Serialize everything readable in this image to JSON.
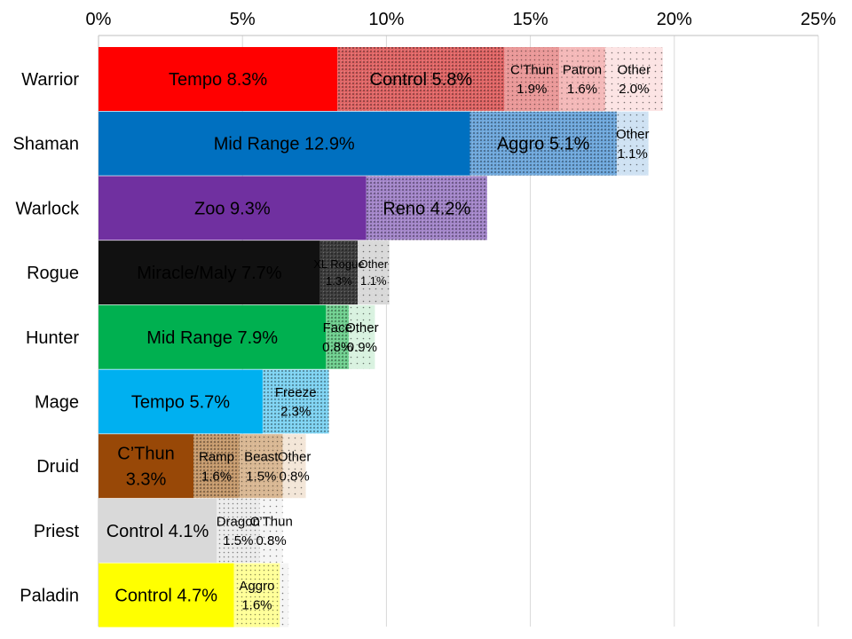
{
  "chart_data": {
    "type": "bar",
    "orientation": "horizontal",
    "stacked": true,
    "title": "",
    "xlabel": "",
    "ylabel": "",
    "xlim": [
      0,
      25
    ],
    "x_ticks": [
      "0%",
      "5%",
      "10%",
      "15%",
      "20%",
      "25%"
    ],
    "x_tick_values": [
      0,
      5,
      10,
      15,
      20,
      25
    ],
    "grid": "vertical",
    "axis_position": "top",
    "unit": "%",
    "categories": [
      {
        "name": "Warrior",
        "segments": [
          {
            "label": "Tempo 8.3%",
            "lines": [
              "Tempo 8.3%"
            ],
            "value": 8.3,
            "color": "#ff0000",
            "pattern": "solid",
            "size": "large"
          },
          {
            "label": "Control 5.8%",
            "lines": [
              "Control 5.8%"
            ],
            "value": 5.8,
            "color": "#e06666",
            "pattern": "dots-dense",
            "size": "large"
          },
          {
            "label": "C'Thun 1.9%",
            "lines": [
              "C’Thun",
              "1.9%"
            ],
            "value": 1.9,
            "color": "#ea9999",
            "pattern": "dots-medium",
            "size": "small"
          },
          {
            "label": "Patron 1.6%",
            "lines": [
              "Patron",
              "1.6%"
            ],
            "value": 1.6,
            "color": "#f4b9b9",
            "pattern": "dots-light",
            "size": "small"
          },
          {
            "label": "Other 2.0%",
            "lines": [
              "Other",
              "2.0%"
            ],
            "value": 2.0,
            "color": "#fce4e4",
            "pattern": "dots-sparse",
            "size": "small"
          }
        ]
      },
      {
        "name": "Shaman",
        "segments": [
          {
            "label": "Mid Range 12.9%",
            "lines": [
              "Mid Range 12.9%"
            ],
            "value": 12.9,
            "color": "#0070c0",
            "pattern": "solid",
            "size": "large"
          },
          {
            "label": "Aggro 5.1%",
            "lines": [
              "Aggro 5.1%"
            ],
            "value": 5.1,
            "color": "#6fa8dc",
            "pattern": "dots-dense",
            "size": "large"
          },
          {
            "label": "Other 1.1%",
            "lines": [
              "Other",
              "1.1%"
            ],
            "value": 1.1,
            "color": "#cfe2f3",
            "pattern": "dots-sparse",
            "size": "small"
          }
        ]
      },
      {
        "name": "Warlock",
        "segments": [
          {
            "label": "Zoo 9.3%",
            "lines": [
              "Zoo 9.3%"
            ],
            "value": 9.3,
            "color": "#7030a0",
            "pattern": "solid",
            "size": "large"
          },
          {
            "label": "Reno 4.2%",
            "lines": [
              "Reno 4.2%"
            ],
            "value": 4.2,
            "color": "#a386c9",
            "pattern": "dots-dense",
            "size": "large"
          }
        ]
      },
      {
        "name": "Rogue",
        "segments": [
          {
            "label": "Miracle/Maly 7.7%",
            "lines": [
              "Miracle/Maly 7.7%"
            ],
            "value": 7.7,
            "color": "#111111",
            "pattern": "solid",
            "size": "large",
            "text_color": "#ffffff"
          },
          {
            "label": "XL Rogue 1.3%",
            "lines": [
              "XL Rogue",
              "1.3%"
            ],
            "value": 1.3,
            "color": "#404040",
            "pattern": "dots-dense",
            "size": "tiny"
          },
          {
            "label": "Other 1.1%",
            "lines": [
              "Other",
              "1.1%"
            ],
            "value": 1.1,
            "color": "#d9d9d9",
            "pattern": "dots-sparse",
            "size": "tiny"
          }
        ]
      },
      {
        "name": "Hunter",
        "segments": [
          {
            "label": "Mid Range 7.9%",
            "lines": [
              "Mid Range 7.9%"
            ],
            "value": 7.9,
            "color": "#00b050",
            "pattern": "solid",
            "size": "large"
          },
          {
            "label": "Face 0.8%",
            "lines": [
              "Face",
              "0.8%"
            ],
            "value": 0.8,
            "color": "#6fcf8f",
            "pattern": "dots-dense",
            "size": "small"
          },
          {
            "label": "Other 0.9%",
            "lines": [
              "Other",
              "0.9%"
            ],
            "value": 0.9,
            "color": "#d9f2e0",
            "pattern": "dots-sparse",
            "size": "small"
          }
        ]
      },
      {
        "name": "Mage",
        "segments": [
          {
            "label": "Tempo 5.7%",
            "lines": [
              "Tempo 5.7%"
            ],
            "value": 5.7,
            "color": "#00b0f0",
            "pattern": "solid",
            "size": "large"
          },
          {
            "label": "Freeze 2.3%",
            "lines": [
              "Freeze",
              "2.3%"
            ],
            "value": 2.3,
            "color": "#7fd3f2",
            "pattern": "dots-dense",
            "size": "small"
          }
        ]
      },
      {
        "name": "Druid",
        "segments": [
          {
            "label": "C'Thun 3.3%",
            "lines": [
              "C’Thun",
              "3.3%"
            ],
            "value": 3.3,
            "color": "#984807",
            "pattern": "solid",
            "size": "large",
            "text_color": "#ffffff"
          },
          {
            "label": "Ramp 1.6%",
            "lines": [
              "Ramp",
              "1.6%"
            ],
            "value": 1.6,
            "color": "#c59a6d",
            "pattern": "dots-dense",
            "size": "small"
          },
          {
            "label": "Beast 1.5%",
            "lines": [
              "Beast",
              "1.5%"
            ],
            "value": 1.5,
            "color": "#d9b894",
            "pattern": "dots-medium",
            "size": "small"
          },
          {
            "label": "Other 0.8%",
            "lines": [
              "Other",
              "0.8%"
            ],
            "value": 0.8,
            "color": "#f3e6d8",
            "pattern": "dots-sparse",
            "size": "small"
          }
        ]
      },
      {
        "name": "Priest",
        "segments": [
          {
            "label": "Control 4.1%",
            "lines": [
              "Control 4.1%"
            ],
            "value": 4.1,
            "color": "#d9d9d9",
            "pattern": "solid",
            "size": "large"
          },
          {
            "label": "Dragon 1.5%",
            "lines": [
              "Dragon",
              "1.5%"
            ],
            "value": 1.5,
            "color": "#ececec",
            "pattern": "dots-medium",
            "size": "small"
          },
          {
            "label": "C'Thun 0.8%",
            "lines": [
              "C’Thun",
              "0.8%"
            ],
            "value": 0.8,
            "color": "#f5f5f5",
            "pattern": "dots-sparse",
            "size": "small"
          }
        ]
      },
      {
        "name": "Paladin",
        "segments": [
          {
            "label": "Control 4.7%",
            "lines": [
              "Control 4.7%"
            ],
            "value": 4.7,
            "color": "#ffff00",
            "pattern": "solid",
            "size": "large"
          },
          {
            "label": "Aggro 1.6%",
            "lines": [
              "Aggro",
              "1.6%"
            ],
            "value": 1.6,
            "color": "#ffff99",
            "pattern": "dots-medium",
            "size": "small"
          },
          {
            "label": "",
            "lines": [],
            "value": 0.3,
            "color": "#f5f5f5",
            "pattern": "dots-sparse",
            "size": "small"
          }
        ]
      }
    ]
  }
}
